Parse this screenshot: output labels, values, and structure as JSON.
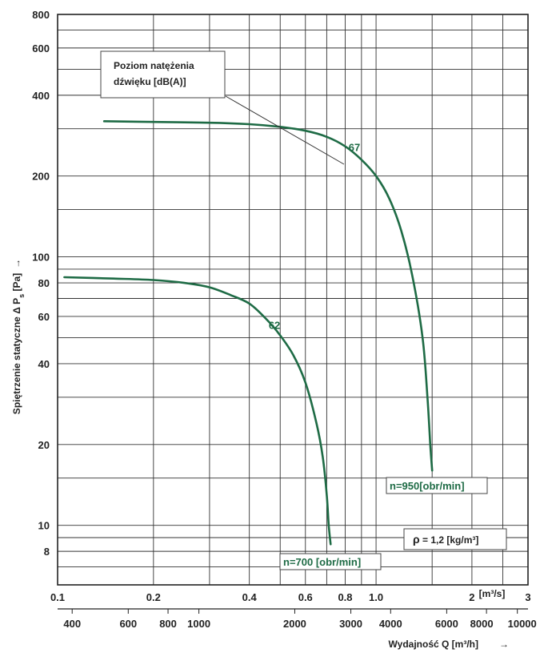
{
  "chart_data": {
    "type": "line",
    "x_scale": "log",
    "y_scale": "log",
    "xlim": [
      0.1,
      3
    ],
    "ylim": [
      6,
      800
    ],
    "ylabel": "Spiętrzenie statyczne Δ P",
    "ylabel_sub": "s",
    "ylabel_unit": " [Pa]",
    "ylabel_arrow": "→",
    "x_unit_label": "[m³/s]",
    "xlabel2": "Wydajność Q [m³/h]",
    "xlabel2_arrow": "→",
    "y_ticks": [
      {
        "value": 8,
        "label": "8"
      },
      {
        "value": 10,
        "label": "10"
      },
      {
        "value": 20,
        "label": "20"
      },
      {
        "value": 40,
        "label": "40"
      },
      {
        "value": 60,
        "label": "60"
      },
      {
        "value": 80,
        "label": "80"
      },
      {
        "value": 100,
        "label": "100"
      },
      {
        "value": 200,
        "label": "200"
      },
      {
        "value": 400,
        "label": "400"
      },
      {
        "value": 600,
        "label": "600"
      },
      {
        "value": 800,
        "label": "800"
      }
    ],
    "x_ticks": [
      {
        "value": 0.1,
        "label": "0.1"
      },
      {
        "value": 0.2,
        "label": "0.2"
      },
      {
        "value": 0.4,
        "label": "0.4"
      },
      {
        "value": 0.6,
        "label": "0.6"
      },
      {
        "value": 0.8,
        "label": "0.8"
      },
      {
        "value": 1.0,
        "label": "1.0"
      },
      {
        "value": 2,
        "label": "2"
      },
      {
        "value": 3,
        "label": "3"
      }
    ],
    "x2_ticks": [
      {
        "value": 400,
        "label": "400"
      },
      {
        "value": 600,
        "label": "600"
      },
      {
        "value": 800,
        "label": "800"
      },
      {
        "value": 1000,
        "label": "1000"
      },
      {
        "value": 2000,
        "label": "2000"
      },
      {
        "value": 3000,
        "label": "3000"
      },
      {
        "value": 4000,
        "label": "4000"
      },
      {
        "value": 6000,
        "label": "6000"
      },
      {
        "value": 8000,
        "label": "8000"
      },
      {
        "value": 10000,
        "label": "10000"
      }
    ],
    "series": [
      {
        "name": "n=950[obr/min]",
        "color": "#1e6b45",
        "points": [
          [
            0.14,
            320
          ],
          [
            0.2,
            318
          ],
          [
            0.3,
            316
          ],
          [
            0.4,
            312
          ],
          [
            0.5,
            305
          ],
          [
            0.6,
            295
          ],
          [
            0.7,
            280
          ],
          [
            0.8,
            258
          ],
          [
            0.9,
            230
          ],
          [
            1.0,
            200
          ],
          [
            1.1,
            165
          ],
          [
            1.2,
            125
          ],
          [
            1.3,
            85
          ],
          [
            1.4,
            50
          ],
          [
            1.45,
            30
          ],
          [
            1.48,
            20
          ],
          [
            1.5,
            16
          ]
        ],
        "point_label": "67",
        "point_label_at": [
          0.82,
          248
        ]
      },
      {
        "name": "n=700 [obr/min]",
        "color": "#1e6b45",
        "points": [
          [
            0.105,
            84
          ],
          [
            0.15,
            83
          ],
          [
            0.2,
            82
          ],
          [
            0.25,
            80
          ],
          [
            0.3,
            77
          ],
          [
            0.35,
            72
          ],
          [
            0.4,
            67
          ],
          [
            0.45,
            59
          ],
          [
            0.5,
            51
          ],
          [
            0.55,
            43
          ],
          [
            0.6,
            34
          ],
          [
            0.65,
            24
          ],
          [
            0.68,
            18
          ],
          [
            0.7,
            13
          ],
          [
            0.71,
            10
          ],
          [
            0.72,
            8.5
          ]
        ],
        "point_label": "62",
        "point_label_at": [
          0.46,
          54
        ]
      }
    ],
    "annotations": {
      "noise_label_line1": "Poziom natężenia",
      "noise_label_line2": "dźwięku [dB(A)]",
      "density_prefix": "ρ",
      "density_value": " = 1,2 [kg/m³]",
      "n950_label": "n=950[obr/min]",
      "n700_label": "n=700 [obr/min]"
    }
  }
}
